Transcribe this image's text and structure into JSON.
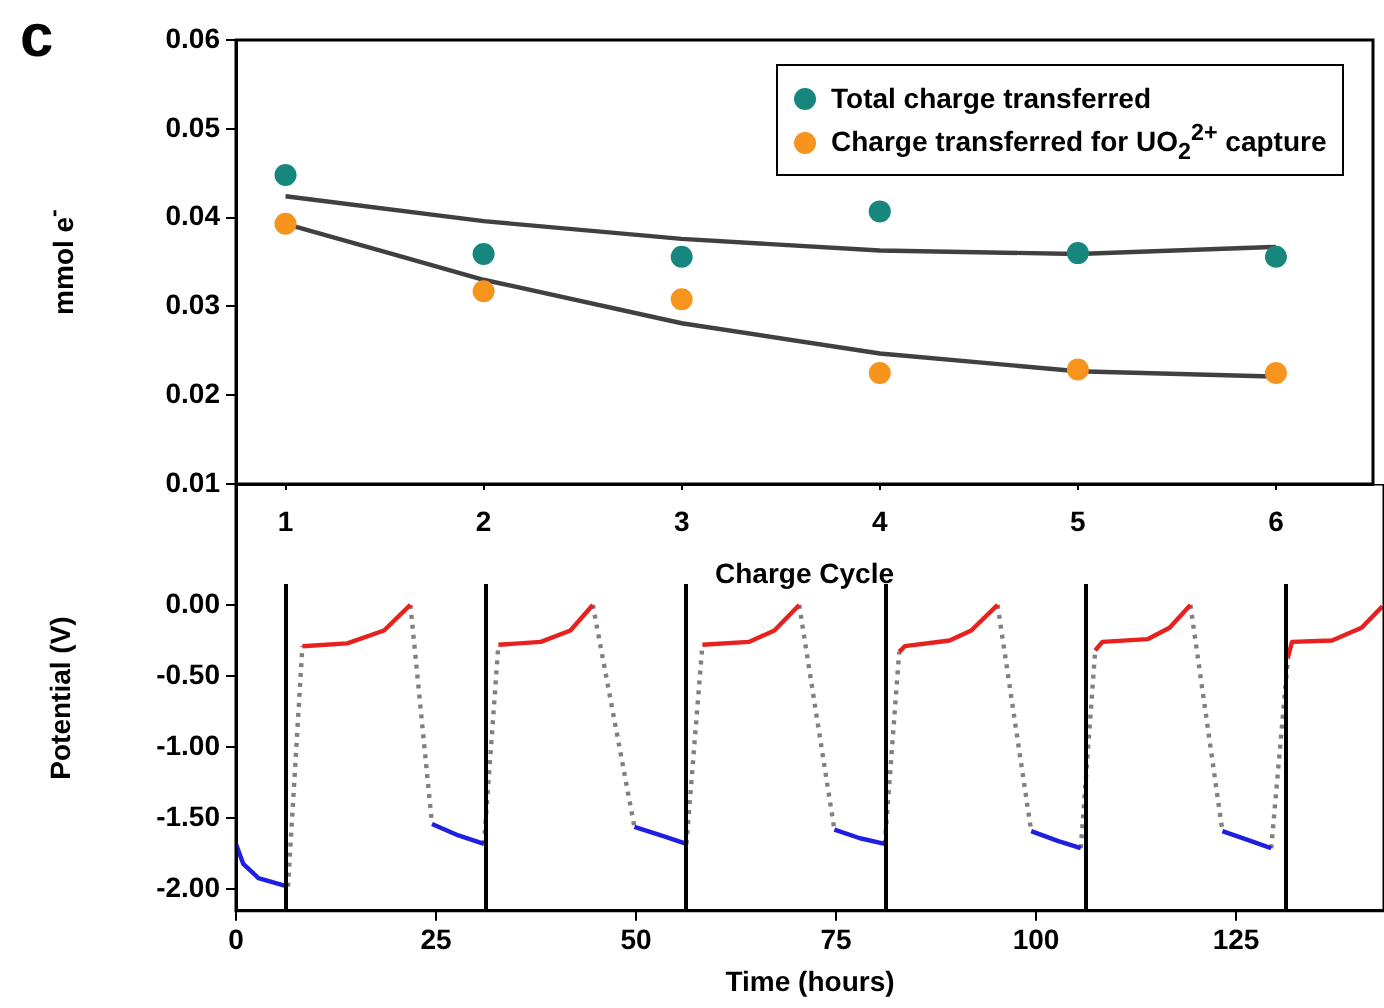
{
  "chart_data": [
    {
      "type": "scatter",
      "xlabel": "Charge Cycle",
      "ylabel": "mmol e$^{-}$",
      "annotations": [
        "c"
      ],
      "x": [
        1,
        2,
        3,
        4,
        5,
        6
      ],
      "xlim": [
        0.75,
        6.49
      ],
      "xticks": [
        1,
        2,
        3,
        4,
        5,
        6
      ],
      "ylim": [
        0.01,
        0.06
      ],
      "yticks": [
        0.01,
        0.02,
        0.03,
        0.04,
        0.05,
        0.06
      ],
      "grid": false,
      "legend": "top right",
      "marker": "circle",
      "series": [
        {
          "name": "Total charge transferred",
          "color": "#17877d",
          "values": [
            0.0448,
            0.0359,
            0.0356,
            0.0407,
            0.036,
            0.0356
          ]
        },
        {
          "name": "Charge transferred for UO$_{2}$$^{2+}$ capture",
          "color": "#f7941d",
          "values": [
            0.0393,
            0.0317,
            0.0308,
            0.0225,
            0.0229,
            0.0225
          ]
        },
        {
          "type": "line",
          "marker": "none",
          "color": "#404040",
          "values": [
            0.0424,
            0.0396,
            0.0376,
            0.0363,
            0.0359,
            0.0367
          ]
        },
        {
          "type": "line",
          "marker": "none",
          "color": "#404040",
          "values": [
            0.0393,
            0.033,
            0.0281,
            0.0247,
            0.0227,
            0.0221
          ]
        }
      ]
    },
    {
      "type": "line",
      "xlabel": "Time (hours)",
      "ylabel": "Potential (V)",
      "xlim": [
        0,
        143.5
      ],
      "xticks": [
        0,
        25,
        50,
        75,
        100,
        125
      ],
      "ylim": [
        -2.15,
        0.85
      ],
      "yticks": [
        {
          "value": 0,
          "label": "0.00"
        },
        {
          "value": -0.5,
          "label": "-0.50"
        },
        {
          "value": -1,
          "label": "-1.00"
        },
        {
          "value": -1.5,
          "label": "-1.50"
        },
        {
          "value": -2,
          "label": "-2.00"
        }
      ],
      "grid": false,
      "legend": false,
      "marker": "none",
      "ref_lines": [
        {
          "axis": "x",
          "value": 6.25,
          "color": "#000000"
        },
        {
          "axis": "x",
          "value": 31.25,
          "color": "#000000"
        },
        {
          "axis": "x",
          "value": 56.25,
          "color": "#000000"
        },
        {
          "axis": "x",
          "value": 81.25,
          "color": "#000000"
        },
        {
          "axis": "x",
          "value": 106.25,
          "color": "#000000"
        },
        {
          "axis": "x",
          "value": 131.25,
          "color": "#000000"
        }
      ],
      "series": [
        {
          "color": "#1f1fe0",
          "x": [
            0,
            0.9,
            2.8,
            6.5,
            15,
            24.5,
            27.8,
            31,
            40,
            49.8,
            53.7,
            56.3,
            65,
            74.8,
            78,
            81.1,
            90,
            99.4,
            102.8,
            105.6,
            115,
            123.3,
            126.9,
            129.4
          ],
          "values": [
            -1.68,
            -1.82,
            -1.92,
            -1.98,
            null,
            -1.54,
            -1.62,
            -1.68,
            null,
            -1.56,
            -1.63,
            -1.68,
            null,
            -1.58,
            -1.64,
            -1.68,
            null,
            -1.59,
            -1.66,
            -1.71,
            null,
            -1.59,
            -1.66,
            -1.71
          ]
        },
        {
          "color": "#e8201e",
          "x": [
            8.3,
            13.9,
            18.5,
            21.8,
            27,
            32.8,
            38.1,
            41.8,
            44.6,
            50,
            58.3,
            64.1,
            67.3,
            70.4,
            76,
            82.9,
            83.6,
            89.2,
            91.9,
            95.2,
            100,
            107.4,
            108.3,
            114,
            116.7,
            119.3,
            125,
            131.5,
            132,
            137,
            140.7,
            143.3
          ],
          "values": [
            -0.29,
            -0.27,
            -0.18,
            0,
            null,
            -0.28,
            -0.26,
            -0.18,
            0,
            null,
            -0.28,
            -0.26,
            -0.18,
            0,
            null,
            -0.33,
            -0.29,
            -0.25,
            -0.18,
            0,
            null,
            -0.32,
            -0.26,
            -0.24,
            -0.16,
            0,
            null,
            -0.37,
            -0.26,
            -0.25,
            -0.16,
            -0.01
          ]
        },
        {
          "color": "#808080",
          "line_style": "dotted",
          "x": [
            6.5,
            8.3,
            15,
            21.8,
            24.5,
            27,
            31,
            32.8,
            40,
            44.6,
            49.8,
            50,
            56.3,
            58.3,
            65,
            70.4,
            74.8,
            76,
            81.1,
            82.9,
            90,
            95.2,
            99.4,
            100,
            105.6,
            107.4,
            115,
            119.3,
            123.3,
            125,
            129.4,
            131.5
          ],
          "values": [
            -1.98,
            -0.29,
            null,
            0,
            -1.54,
            null,
            -1.68,
            -0.28,
            null,
            0,
            -1.56,
            null,
            -1.68,
            -0.28,
            null,
            0,
            -1.58,
            null,
            -1.68,
            -0.33,
            null,
            0,
            -1.59,
            null,
            -1.71,
            -0.32,
            null,
            0,
            -1.59,
            null,
            -1.71,
            -0.37
          ]
        }
      ]
    }
  ]
}
